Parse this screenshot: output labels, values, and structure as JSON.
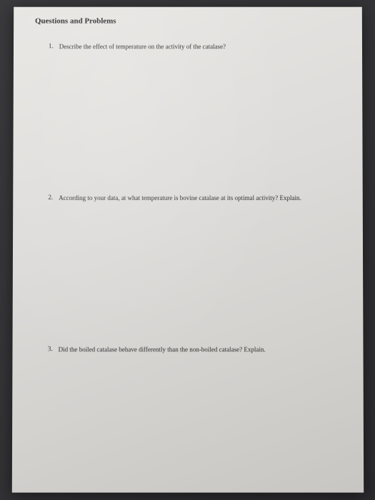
{
  "document": {
    "title": "Questions and Problems",
    "title_fontsize": 11,
    "title_fontweight": "bold",
    "body_fontsize": 9,
    "font_family": "Times New Roman",
    "text_color": "#2a2a2a",
    "paper_bg_gradient": [
      "#e8e6e3",
      "#dedcda",
      "#d4d2cf",
      "#c8c6c3"
    ],
    "backdrop_gradient": [
      "#3a3a3d",
      "#2a2a2d"
    ],
    "questions": [
      {
        "number": "1.",
        "text": "Describe the effect of temperature on the activity of the catalase?"
      },
      {
        "number": "2.",
        "text": "According to your data, at what temperature is bovine catalase at its optimal activity? Explain."
      },
      {
        "number": "3.",
        "text": "Did the boiled catalase behave differently than the non-boiled catalase? Explain."
      }
    ],
    "spacing_between_questions": 200
  }
}
